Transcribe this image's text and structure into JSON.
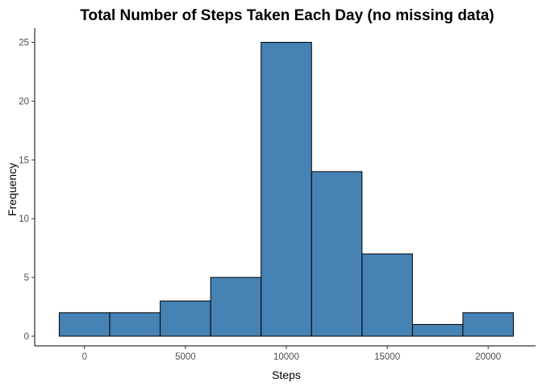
{
  "chart_data": {
    "type": "histogram",
    "title": "Total Number of Steps Taken Each Day (no missing data)",
    "xlabel": "Steps",
    "ylabel": "Frequency",
    "bins": [
      {
        "x0": -1250,
        "x1": 1250,
        "count": 2
      },
      {
        "x0": 1250,
        "x1": 3750,
        "count": 2
      },
      {
        "x0": 3750,
        "x1": 6250,
        "count": 3
      },
      {
        "x0": 6250,
        "x1": 8750,
        "count": 5
      },
      {
        "x0": 8750,
        "x1": 11250,
        "count": 25
      },
      {
        "x0": 11250,
        "x1": 13750,
        "count": 14
      },
      {
        "x0": 13750,
        "x1": 16250,
        "count": 7
      },
      {
        "x0": 16250,
        "x1": 18750,
        "count": 1
      },
      {
        "x0": 18750,
        "x1": 21250,
        "count": 2
      }
    ],
    "xlim": [
      -1250,
      21250
    ],
    "ylim": [
      0,
      25
    ],
    "xticks": [
      0,
      5000,
      10000,
      15000,
      20000
    ],
    "yticks": [
      0,
      5,
      10,
      15,
      20,
      25
    ],
    "bar_color": "#4682B4",
    "bar_edge_color": "#000000",
    "grid": false,
    "legend": "none"
  }
}
